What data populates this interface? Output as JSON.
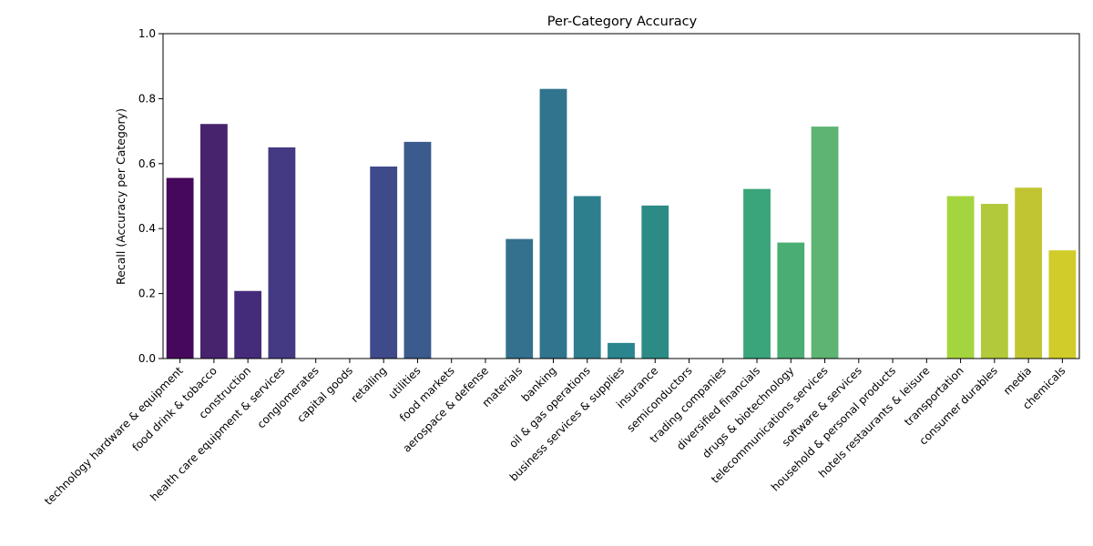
{
  "chart_data": {
    "type": "bar",
    "title": "Per-Category Accuracy",
    "xlabel": "",
    "ylabel": "Recall (Accuracy per Category)",
    "ylim": [
      0,
      1.0
    ],
    "yticks": [
      "0.0",
      "0.2",
      "0.4",
      "0.6",
      "0.8",
      "1.0"
    ],
    "grid": false,
    "categories": [
      "technology hardware & equipment",
      "food drink & tobacco",
      "construction",
      "health care equipment & services",
      "conglomerates",
      "capital goods",
      "retailing",
      "utilities",
      "food markets",
      "aerospace & defense",
      "materials",
      "banking",
      "oil & gas operations",
      "business services & supplies",
      "insurance",
      "semiconductors",
      "trading companies",
      "diversified financials",
      "drugs & biotechnology",
      "telecommunications services",
      "software & services",
      "household & personal products",
      "hotels restaurants & leisure",
      "transportation",
      "consumer durables",
      "media",
      "chemicals"
    ],
    "values": [
      0.556,
      0.722,
      0.208,
      0.65,
      0,
      0,
      0.591,
      0.667,
      0,
      0,
      0.368,
      0.83,
      0.5,
      0.048,
      0.471,
      0,
      0,
      0.522,
      0.357,
      0.714,
      0,
      0,
      0,
      0.5,
      0.476,
      0.526,
      0.333
    ],
    "colors": [
      "#46085c",
      "#47226d",
      "#452c7a",
      "#433a83",
      "#3e4989",
      "#38598c",
      "#3f4a8a",
      "#3b5a8d",
      "#34618d",
      "#2f6c8e",
      "#33718e",
      "#31748e",
      "#2e7f8e",
      "#2b858e",
      "#2c8c85",
      "#21918c",
      "#23988a",
      "#3aa57a",
      "#49ad74",
      "#5db473",
      "#6ccd5a",
      "#7fd34e",
      "#8fd744",
      "#a5d53e",
      "#b1c93a",
      "#c2c532",
      "#d1cc2a"
    ]
  }
}
